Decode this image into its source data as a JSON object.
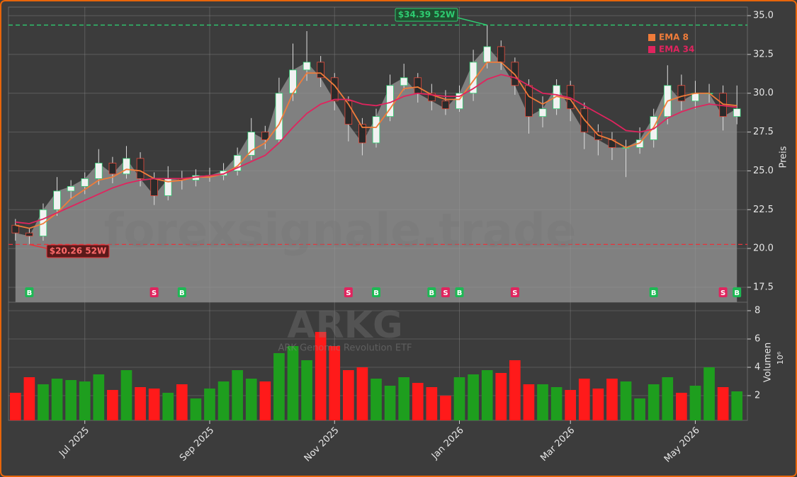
{
  "chart_data": {
    "type": "candlestick",
    "watermark": "forexsignale.trade",
    "title": "ARKG",
    "subtitle": "ARK Genomic Revolution ETF",
    "categories": [
      null,
      null,
      null,
      null,
      null,
      "Jul 2025",
      null,
      null,
      null,
      null,
      null,
      null,
      null,
      null,
      "Sep 2025",
      null,
      null,
      null,
      null,
      null,
      null,
      null,
      null,
      "Nov 2025",
      null,
      null,
      null,
      null,
      null,
      null,
      null,
      null,
      "Jan 2026",
      null,
      null,
      null,
      null,
      null,
      null,
      null,
      "Mar 2026",
      null,
      null,
      null,
      null,
      null,
      null,
      null,
      null,
      "May 2026",
      null,
      null,
      null
    ],
    "open": [
      21.5,
      21.0,
      20.8,
      22.5,
      23.7,
      24.0,
      24.5,
      25.5,
      24.8,
      25.8,
      24.5,
      23.4,
      24.5,
      24.4,
      24.7,
      24.7,
      25.0,
      26.0,
      27.5,
      27.0,
      30.0,
      31.5,
      32.0,
      31.0,
      29.5,
      28.0,
      26.8,
      28.5,
      30.5,
      31.0,
      30.0,
      29.5,
      29.0,
      30.0,
      32.0,
      33.0,
      32.0,
      30.5,
      28.5,
      29.0,
      30.5,
      29.0,
      27.5,
      27.0,
      26.5,
      26.5,
      27.0,
      28.5,
      30.5,
      29.5,
      30.0,
      30.0,
      28.5
    ],
    "high": [
      21.9,
      21.3,
      22.9,
      24.6,
      24.4,
      24.9,
      26.4,
      25.9,
      26.6,
      26.2,
      24.9,
      25.3,
      25.0,
      25.1,
      25.2,
      25.5,
      26.5,
      28.4,
      27.9,
      31.0,
      33.2,
      34.0,
      32.4,
      31.3,
      29.8,
      28.4,
      29.0,
      31.2,
      31.9,
      31.3,
      30.6,
      30.2,
      30.5,
      32.8,
      34.39,
      33.4,
      32.3,
      30.9,
      29.8,
      30.9,
      30.8,
      29.4,
      28.0,
      27.5,
      27.0,
      27.8,
      29.0,
      31.8,
      31.2,
      30.8,
      30.6,
      30.5,
      30.5
    ],
    "low": [
      20.5,
      20.26,
      20.5,
      22.1,
      23.2,
      23.5,
      24.1,
      24.2,
      24.5,
      24.0,
      22.8,
      23.1,
      23.8,
      24.0,
      24.3,
      24.4,
      24.7,
      25.7,
      26.4,
      26.8,
      29.5,
      30.8,
      30.4,
      28.9,
      26.9,
      26.0,
      26.5,
      28.2,
      30.2,
      29.4,
      28.9,
      28.6,
      28.8,
      29.5,
      31.6,
      31.5,
      29.9,
      27.4,
      27.8,
      28.6,
      28.2,
      26.4,
      26.0,
      25.7,
      24.6,
      26.1,
      26.5,
      28.0,
      28.9,
      29.0,
      29.4,
      27.6,
      28.0
    ],
    "close": [
      21.0,
      20.8,
      22.5,
      23.7,
      24.0,
      24.5,
      25.5,
      24.8,
      25.8,
      24.5,
      23.4,
      24.5,
      24.4,
      24.7,
      24.7,
      25.0,
      26.0,
      27.5,
      27.0,
      30.0,
      31.5,
      32.0,
      31.0,
      29.5,
      28.0,
      26.8,
      28.5,
      30.5,
      31.0,
      30.0,
      29.5,
      29.0,
      30.0,
      32.0,
      33.0,
      32.0,
      30.5,
      28.5,
      29.0,
      30.5,
      29.0,
      27.5,
      27.0,
      26.5,
      26.5,
      27.0,
      28.5,
      30.5,
      29.5,
      30.0,
      30.0,
      28.5,
      29.0
    ],
    "area_color": "#808080",
    "up_color": "#f2f2f2",
    "down_color": "#2a2a2a",
    "series": [
      {
        "name": "EMA 8",
        "color": "#f07c3a",
        "values": [
          21.5,
          21.3,
          21.6,
          22.3,
          23.2,
          23.8,
          24.4,
          24.6,
          25.1,
          25.0,
          24.5,
          24.3,
          24.4,
          24.6,
          24.6,
          24.8,
          25.3,
          26.3,
          26.8,
          28.0,
          30.0,
          31.3,
          31.3,
          30.5,
          29.3,
          27.8,
          27.8,
          29.0,
          30.3,
          30.4,
          29.9,
          29.6,
          29.6,
          30.8,
          32.0,
          32.0,
          31.2,
          29.8,
          29.3,
          29.8,
          29.6,
          28.3,
          27.3,
          27.0,
          26.5,
          26.8,
          27.8,
          29.5,
          29.8,
          30.0,
          30.0,
          29.3,
          29.2
        ]
      },
      {
        "name": "EMA 34",
        "color": "#e0245e",
        "values": [
          21.7,
          21.6,
          21.9,
          22.3,
          22.7,
          23.1,
          23.5,
          23.9,
          24.2,
          24.4,
          24.5,
          24.5,
          24.5,
          24.6,
          24.7,
          24.8,
          25.2,
          25.6,
          26.0,
          26.8,
          27.8,
          28.7,
          29.3,
          29.6,
          29.6,
          29.3,
          29.2,
          29.4,
          29.8,
          30.0,
          29.9,
          29.8,
          29.8,
          30.3,
          30.9,
          31.2,
          31.0,
          30.5,
          30.0,
          29.9,
          29.7,
          29.2,
          28.7,
          28.2,
          27.6,
          27.5,
          27.7,
          28.4,
          28.8,
          29.1,
          29.3,
          29.2,
          29.1
        ]
      }
    ],
    "ylim": [
      16.54,
      35.55
    ],
    "yticks": [
      17.5,
      {
        "value": 20,
        "label": "20.0"
      },
      22.5,
      {
        "value": 25,
        "label": "25.0"
      },
      27.5,
      {
        "value": 30,
        "label": "30.0"
      },
      32.5,
      {
        "value": 35,
        "label": "35.0"
      }
    ],
    "ylabel": "Preis",
    "grid": true,
    "legend": "upper right",
    "high_52w": {
      "value": 34.39,
      "label": "$34.39 52W",
      "color": "#2ecc71"
    },
    "low_52w": {
      "value": 20.26,
      "label": "$20.26 52W",
      "color": "#e8333a"
    },
    "signals": [
      null,
      "B",
      null,
      null,
      null,
      null,
      null,
      null,
      null,
      null,
      "S",
      null,
      "B",
      null,
      null,
      null,
      null,
      null,
      null,
      null,
      null,
      null,
      null,
      null,
      "S",
      null,
      "B",
      null,
      null,
      null,
      "B",
      "S",
      "B",
      null,
      null,
      null,
      "S",
      null,
      null,
      null,
      null,
      null,
      null,
      null,
      null,
      null,
      "B",
      null,
      null,
      null,
      null,
      "S",
      "B"
    ],
    "buy_color": "#1db954",
    "sell_color": "#e0245e",
    "volume": {
      "values": [
        2.2,
        3.3,
        2.8,
        3.2,
        3.1,
        3.0,
        3.5,
        2.4,
        3.8,
        2.6,
        2.5,
        2.2,
        2.8,
        1.8,
        2.5,
        3.0,
        3.8,
        3.2,
        3.0,
        5.0,
        5.5,
        4.5,
        6.5,
        5.5,
        3.8,
        4.0,
        3.2,
        2.7,
        3.3,
        2.9,
        2.6,
        2.0,
        3.3,
        3.5,
        3.8,
        3.6,
        4.5,
        2.8,
        2.8,
        2.6,
        2.4,
        3.2,
        2.5,
        3.2,
        3.0,
        1.8,
        2.8,
        3.3,
        2.2,
        2.7,
        4.0,
        2.6,
        2.3
      ],
      "ylim": [
        0.25,
        8.6
      ],
      "yticks": [
        2,
        4,
        6,
        8
      ],
      "ylabel": "Volumen",
      "scale_label": "10⁶",
      "up_color": "#1e9e1e",
      "down_color": "#ff1a1a"
    }
  }
}
